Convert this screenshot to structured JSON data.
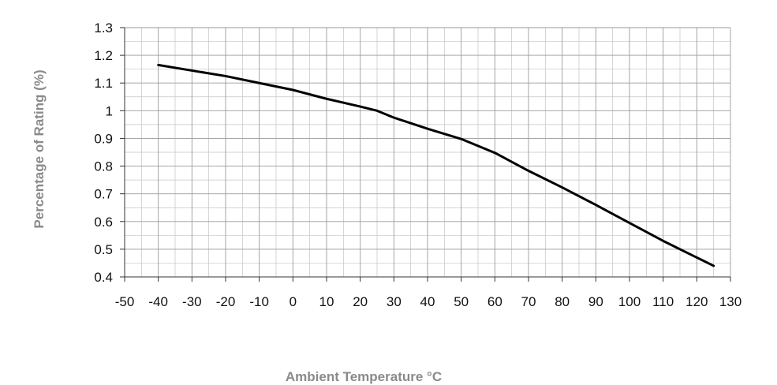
{
  "chart_data": {
    "type": "line",
    "title": "",
    "xlabel": "Ambient Temperature °C",
    "ylabel": "Percentage of Rating (%)",
    "xlim": [
      -50,
      130
    ],
    "ylim": [
      0.4,
      1.3
    ],
    "xticks": [
      -50,
      -40,
      -30,
      -20,
      -10,
      0,
      10,
      20,
      30,
      40,
      50,
      60,
      70,
      80,
      90,
      100,
      110,
      120,
      130
    ],
    "yticks": [
      0.4,
      0.5,
      0.6,
      0.7,
      0.8,
      0.9,
      1.0,
      1.1,
      1.2,
      1.3
    ],
    "ytick_labels": [
      "0.4",
      "0.5",
      "0.6",
      "0.7",
      "0.8",
      "0.9",
      "1",
      "1.1",
      "1.2",
      "1.3"
    ],
    "grid": true,
    "minor_grid_x": 5,
    "minor_grid_y": 0.05,
    "line_color": "#000000",
    "series": [
      {
        "x": [
          -40,
          -30,
          -20,
          -10,
          0,
          10,
          20,
          25,
          30,
          40,
          50,
          60,
          70,
          80,
          90,
          100,
          110,
          120,
          125
        ],
        "values": [
          1.165,
          1.145,
          1.125,
          1.1,
          1.075,
          1.043,
          1.015,
          1.0,
          0.975,
          0.935,
          0.898,
          0.848,
          0.783,
          0.723,
          0.66,
          0.595,
          0.53,
          0.47,
          0.44
        ]
      }
    ]
  }
}
